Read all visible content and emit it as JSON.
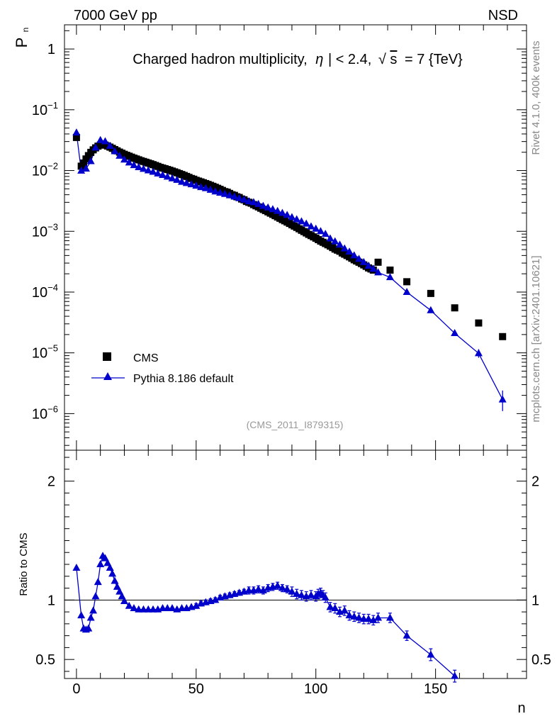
{
  "header": {
    "energy_label": "7000 GeV pp",
    "process_label": "NSD"
  },
  "side_text": {
    "rivet": "Rivet 4.1.0,  400k events",
    "mcplots": "mcplots.cern.ch [arXiv:2401.10621]"
  },
  "chart_data": [
    {
      "type": "scatter",
      "title": "Charged hadron multiplicity, |η| < 2.4, √s = 7 {TeV}",
      "title_parts": {
        "main": "Charged hadron multiplicity,",
        "eta": "η",
        "cut": "| < 2.4,",
        "sqrt": "√",
        "s": "s",
        "energy": "= 7 {TeV}"
      },
      "ylabel": "P",
      "ylabel_sub": "n",
      "xlabel": "n",
      "analysis_label": "(CMS_2011_I879315)",
      "yscale": "log",
      "ylim": [
        2.5e-07,
        2.5
      ],
      "xlim": [
        -5,
        188
      ],
      "y_ticks": [
        {
          "value": 1,
          "base": "1",
          "exp": ""
        },
        {
          "value": 0.1,
          "base": "10",
          "exp": "−1"
        },
        {
          "value": 0.01,
          "base": "10",
          "exp": "−2"
        },
        {
          "value": 0.001,
          "base": "10",
          "exp": "−3"
        },
        {
          "value": 0.0001,
          "base": "10",
          "exp": "−4"
        },
        {
          "value": 1e-05,
          "base": "10",
          "exp": "−5"
        },
        {
          "value": 1e-06,
          "base": "10",
          "exp": "−6"
        }
      ],
      "legend": [
        "CMS",
        "Pythia 8.186 default"
      ],
      "series": [
        {
          "name": "CMS",
          "marker": "square",
          "color": "#000000",
          "n": [
            0,
            2,
            3,
            4,
            5,
            6,
            7,
            8,
            9,
            10,
            11,
            12,
            13,
            14,
            15,
            16,
            17,
            18,
            19,
            20,
            21,
            22,
            23,
            24,
            25,
            26,
            27,
            28,
            29,
            30,
            31,
            32,
            33,
            34,
            35,
            36,
            37,
            38,
            39,
            40,
            41,
            42,
            43,
            44,
            45,
            46,
            47,
            48,
            49,
            50,
            51,
            52,
            53,
            54,
            55,
            56,
            57,
            58,
            59,
            60,
            61,
            62,
            63,
            64,
            65,
            66,
            67,
            68,
            69,
            70,
            71,
            72,
            73,
            74,
            75,
            76,
            77,
            78,
            79,
            80,
            81,
            82,
            83,
            84,
            85,
            86,
            87,
            88,
            89,
            90,
            91,
            92,
            93,
            94,
            95,
            96,
            97,
            98,
            99,
            100,
            101,
            102,
            103,
            104,
            105,
            106,
            107,
            108,
            109,
            110,
            111,
            112,
            113,
            114,
            115,
            116,
            117,
            118,
            119,
            120,
            121,
            122,
            123,
            124,
            126,
            131,
            138,
            148,
            158,
            168,
            178
          ],
          "p": [
            0.035,
            0.0118,
            0.0133,
            0.0155,
            0.0176,
            0.0199,
            0.0219,
            0.0236,
            0.0252,
            0.0263,
            0.0265,
            0.0262,
            0.0253,
            0.0243,
            0.0232,
            0.0221,
            0.0211,
            0.0201,
            0.0193,
            0.0185,
            0.0178,
            0.0172,
            0.0166,
            0.016,
            0.0155,
            0.015,
            0.0145,
            0.0141,
            0.0137,
            0.0133,
            0.0129,
            0.0125,
            0.0121,
            0.0117,
            0.0113,
            0.011,
            0.0107,
            0.0104,
            0.0101,
            0.0098,
            0.0095,
            0.0092,
            0.0089,
            0.0086,
            0.0083,
            0.008,
            0.0077,
            0.0074,
            0.0072,
            0.0069,
            0.0067,
            0.0065,
            0.0063,
            0.0061,
            0.0059,
            0.0057,
            0.0055,
            0.0053,
            0.0051,
            0.0049,
            0.0047,
            0.0045,
            0.0044,
            0.0042,
            0.004,
            0.0039,
            0.0037,
            0.0036,
            0.0034,
            0.0033,
            0.0031,
            0.003,
            0.0029,
            0.00275,
            0.00263,
            0.00252,
            0.0024,
            0.00229,
            0.00219,
            0.00209,
            0.00199,
            0.0019,
            0.00181,
            0.00172,
            0.00164,
            0.00156,
            0.00149,
            0.00142,
            0.00135,
            0.00128,
            0.00122,
            0.00116,
            0.0011,
            0.00104,
            0.00099,
            0.00094,
            0.00089,
            0.00085,
            0.00081,
            0.00077,
            0.00073,
            0.00069,
            0.00066,
            0.00063,
            0.0006,
            0.00057,
            0.00054,
            0.00051,
            0.00049,
            0.00047,
            0.00044,
            0.00042,
            0.0004,
            0.00038,
            0.00036,
            0.00034,
            0.000325,
            0.00031,
            0.000295,
            0.00028,
            0.000265,
            0.00025,
            0.00024,
            0.00023,
            0.00031,
            0.00023,
            0.000148,
            9.5e-05,
            5.5e-05,
            3.1e-05,
            1.85e-05
          ]
        },
        {
          "name": "Pythia 8.186 default",
          "marker": "triangle",
          "color": "#0000cc",
          "n": [
            0,
            2,
            4,
            6,
            8,
            10,
            12,
            14,
            16,
            18,
            20,
            22,
            24,
            26,
            28,
            30,
            32,
            34,
            36,
            38,
            40,
            42,
            44,
            46,
            48,
            50,
            52,
            54,
            56,
            58,
            60,
            62,
            64,
            66,
            68,
            70,
            72,
            74,
            76,
            78,
            80,
            82,
            84,
            86,
            88,
            90,
            92,
            94,
            96,
            98,
            100,
            102,
            104,
            106,
            108,
            110,
            112,
            114,
            116,
            118,
            120,
            122,
            124,
            126,
            131,
            138,
            148,
            158,
            168,
            178
          ],
          "p": [
            0.042,
            0.0099,
            0.0107,
            0.0142,
            0.0237,
            0.0316,
            0.0301,
            0.0254,
            0.0207,
            0.0174,
            0.0151,
            0.0135,
            0.0122,
            0.0113,
            0.0106,
            0.01,
            0.0095,
            0.0089,
            0.0084,
            0.0079,
            0.0074,
            0.007,
            0.0065,
            0.0062,
            0.0059,
            0.0056,
            0.0053,
            0.0051,
            0.0048,
            0.0045,
            0.0043,
            0.0041,
            0.0039,
            0.0037,
            0.0035,
            0.0033,
            0.0031,
            0.003,
            0.0028,
            0.0026,
            0.00245,
            0.0023,
            0.00215,
            0.002,
            0.00185,
            0.0017,
            0.00157,
            0.00145,
            0.00133,
            0.0012,
            0.0011,
            0.001,
            0.0009,
            0.00076,
            0.00068,
            0.0006,
            0.00052,
            0.00046,
            0.0004,
            0.00035,
            0.00031,
            0.00027,
            0.00024,
            0.00021,
            0.000175,
            0.0001,
            5e-05,
            2.1e-05,
            9.8e-06,
            1.7e-06
          ]
        }
      ]
    },
    {
      "type": "line",
      "title": "",
      "ylabel": "Ratio to CMS",
      "xlabel": "n",
      "ylim": [
        0.34,
        2.26
      ],
      "xlim": [
        -5,
        188
      ],
      "y_ticks": [
        0.5,
        1,
        2
      ],
      "y_tick_labels": [
        "0.5",
        "1",
        "2"
      ],
      "x_ticks": [
        0,
        50,
        100,
        150
      ],
      "x_tick_labels": [
        "0",
        "50",
        "100",
        "150"
      ],
      "reference_line": 1,
      "series": [
        {
          "name": "Pythia 8.186 default / CMS",
          "color": "#0000cc",
          "n": [
            0,
            2,
            3,
            4,
            5,
            6,
            7,
            8,
            9,
            10,
            11,
            12,
            13,
            14,
            15,
            16,
            17,
            18,
            19,
            20,
            22,
            24,
            26,
            28,
            30,
            32,
            34,
            36,
            38,
            40,
            42,
            44,
            46,
            48,
            50,
            52,
            54,
            56,
            58,
            60,
            62,
            64,
            66,
            68,
            70,
            72,
            74,
            76,
            78,
            80,
            82,
            84,
            86,
            88,
            90,
            92,
            94,
            96,
            98,
            100,
            101,
            102,
            103,
            104,
            106,
            108,
            110,
            112,
            114,
            116,
            118,
            120,
            122,
            124,
            126,
            131,
            138,
            148,
            158
          ],
          "ratio": [
            1.27,
            0.87,
            0.76,
            0.75,
            0.76,
            0.85,
            0.91,
            1.03,
            1.15,
            1.3,
            1.37,
            1.35,
            1.31,
            1.27,
            1.22,
            1.16,
            1.11,
            1.07,
            1.03,
            0.99,
            0.95,
            0.93,
            0.92,
            0.92,
            0.92,
            0.92,
            0.92,
            0.93,
            0.93,
            0.93,
            0.92,
            0.93,
            0.93,
            0.94,
            0.95,
            0.97,
            0.98,
            0.99,
            1.0,
            1.02,
            1.03,
            1.04,
            1.05,
            1.06,
            1.07,
            1.08,
            1.08,
            1.09,
            1.08,
            1.1,
            1.11,
            1.12,
            1.1,
            1.09,
            1.07,
            1.05,
            1.04,
            1.03,
            1.04,
            1.03,
            1.05,
            1.06,
            1.04,
            1.02,
            0.94,
            0.93,
            0.9,
            0.91,
            0.87,
            0.86,
            0.85,
            0.84,
            0.84,
            0.83,
            0.85,
            0.85,
            0.7,
            0.54,
            0.36
          ],
          "err": [
            0.01,
            0.01,
            0.01,
            0.01,
            0.01,
            0.01,
            0.01,
            0.01,
            0.01,
            0.01,
            0.01,
            0.01,
            0.01,
            0.01,
            0.01,
            0.01,
            0.01,
            0.01,
            0.01,
            0.01,
            0.01,
            0.01,
            0.01,
            0.01,
            0.01,
            0.01,
            0.01,
            0.01,
            0.01,
            0.01,
            0.01,
            0.01,
            0.01,
            0.01,
            0.02,
            0.02,
            0.02,
            0.02,
            0.02,
            0.02,
            0.02,
            0.02,
            0.02,
            0.02,
            0.02,
            0.03,
            0.03,
            0.03,
            0.03,
            0.03,
            0.03,
            0.03,
            0.03,
            0.03,
            0.04,
            0.04,
            0.04,
            0.04,
            0.04,
            0.04,
            0.04,
            0.04,
            0.04,
            0.04,
            0.04,
            0.04,
            0.04,
            0.04,
            0.04,
            0.04,
            0.04,
            0.04,
            0.04,
            0.04,
            0.04,
            0.04,
            0.04,
            0.05,
            0.05
          ]
        }
      ]
    }
  ]
}
